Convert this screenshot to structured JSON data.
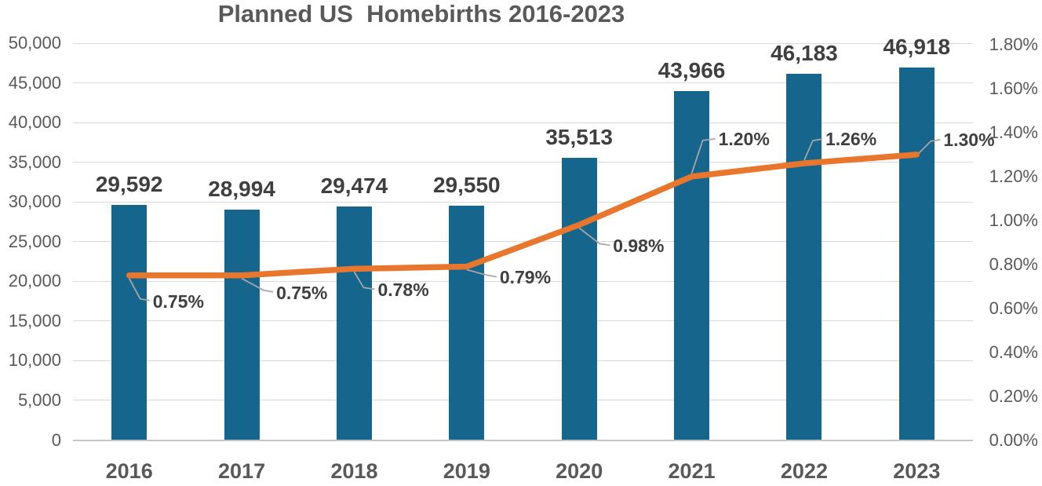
{
  "chart_data": {
    "type": "bar",
    "title": "Planned US  Homebirths 2016-2023",
    "categories": [
      "2016",
      "2017",
      "2018",
      "2019",
      "2020",
      "2021",
      "2022",
      "2023"
    ],
    "series": [
      {
        "type": "bar",
        "axis": "left",
        "values": [
          29592,
          28994,
          29474,
          29550,
          35513,
          43966,
          46183,
          46918
        ],
        "labels": [
          "29,592",
          "28,994",
          "29,474",
          "29,550",
          "35,513",
          "43,966",
          "46,183",
          "46,918"
        ]
      },
      {
        "type": "line",
        "axis": "right",
        "values": [
          0.75,
          0.75,
          0.78,
          0.79,
          0.98,
          1.2,
          1.26,
          1.3
        ],
        "labels": [
          "0.75%",
          "0.75%",
          "0.78%",
          "0.79%",
          "0.98%",
          "1.20%",
          "1.26%",
          "1.30%"
        ]
      }
    ],
    "left_axis": {
      "min": 0,
      "max": 50000,
      "step": 5000,
      "tick_labels": [
        "0",
        "5,000",
        "10,000",
        "15,000",
        "20,000",
        "25,000",
        "30,000",
        "35,000",
        "40,000",
        "45,000",
        "50,000"
      ]
    },
    "right_axis": {
      "min": 0,
      "max": 1.8,
      "step": 0.2,
      "tick_labels": [
        "0.00%",
        "0.20%",
        "0.40%",
        "0.60%",
        "0.80%",
        "1.00%",
        "1.20%",
        "1.40%",
        "1.60%",
        "1.80%"
      ]
    },
    "grid": "horizontal",
    "legend": "none",
    "colors": {
      "bar": "#16658c",
      "line": "#e8762c",
      "grid": "#d9d9d9",
      "axis_line": "#c6c6c6",
      "leader_line": "#a6a6a6",
      "title_text": "#595959",
      "axis_text": "#595959",
      "data_label_text": "#3f3f3f"
    }
  }
}
